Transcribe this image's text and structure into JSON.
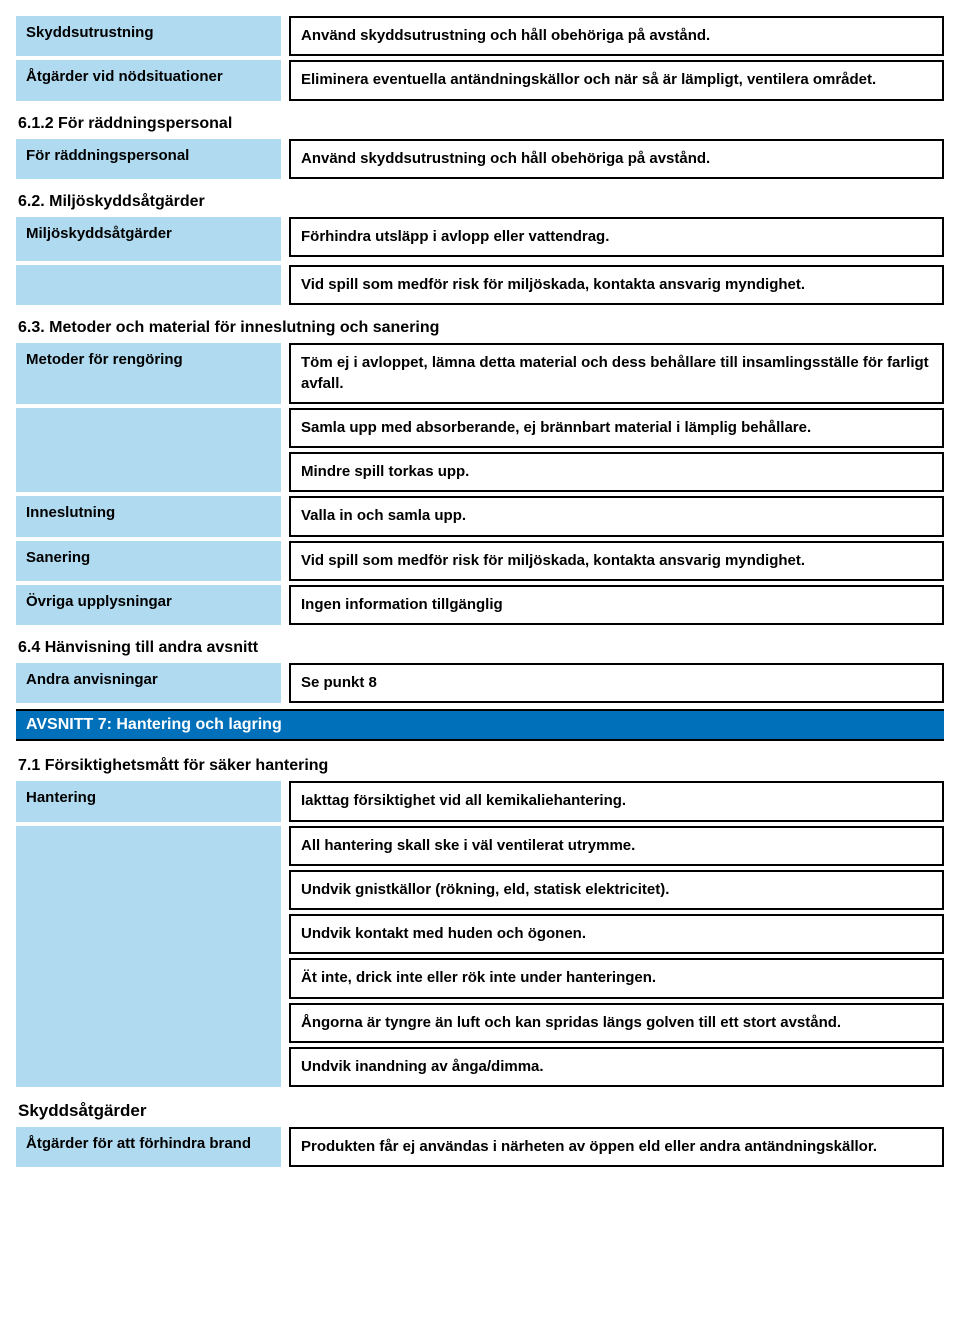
{
  "colors": {
    "label_bg": "#b0daf0",
    "section_bg": "#0070ba",
    "section_text": "#ffffff",
    "border": "#000000",
    "text": "#000000"
  },
  "rows": {
    "skydd": {
      "label": "Skyddsutrustning",
      "v1": "Använd skyddsutrustning och håll obehöriga på avstånd."
    },
    "atgarder_nod": {
      "label": "Åtgärder vid nödsituationer",
      "v1": "Eliminera eventuella antändningskällor och när så är lämpligt, ventilera området."
    },
    "h612": "6.1.2 För räddningspersonal",
    "raddnings": {
      "label": "För räddningspersonal",
      "v1": "Använd skyddsutrustning och håll obehöriga på avstånd."
    },
    "h62": "6.2. Miljöskyddsåtgärder",
    "miljo": {
      "label": "Miljöskyddsåtgärder",
      "v1": "Förhindra utsläpp i avlopp eller vattendrag.",
      "v2": "Vid spill som medför risk för miljöskada, kontakta ansvarig myndighet."
    },
    "h63": "6.3. Metoder och material för inneslutning och sanering",
    "metoder": {
      "label": "Metoder för rengöring",
      "v1": "Töm ej i avloppet, lämna detta material och dess behållare till insamlingsställe för farligt avfall.",
      "v2": "Samla upp med absorberande, ej brännbart material i lämplig behållare.",
      "v3": "Mindre spill torkas upp."
    },
    "inneslutning": {
      "label": "Inneslutning",
      "v1": "Valla in och samla upp."
    },
    "sanering": {
      "label": "Sanering",
      "v1": "Vid spill som medför risk för miljöskada, kontakta ansvarig myndighet."
    },
    "ovriga": {
      "label": "Övriga upplysningar",
      "v1": "Ingen information tillgänglig"
    },
    "h64": "6.4 Hänvisning till andra avsnitt",
    "andra": {
      "label": "Andra anvisningar",
      "v1": "Se punkt 8"
    },
    "section7": "AVSNITT 7: Hantering och lagring",
    "h71": "7.1 Försiktighetsmått för säker hantering",
    "hantering": {
      "label": "Hantering",
      "v1": "Iakttag försiktighet vid all kemikaliehantering.",
      "v2": "All hantering skall ske i väl ventilerat utrymme.",
      "v3": "Undvik gnistkällor (rökning, eld, statisk elektricitet).",
      "v4": "Undvik kontakt med huden och ögonen.",
      "v5": "Ät inte, drick inte eller rök inte under hanteringen.",
      "v6": "Ångorna är tyngre än luft och kan spridas längs golven till ett stort avstånd.",
      "v7": "Undvik inandning av ånga/dimma."
    },
    "skyddsatgarder": "Skyddsåtgärder",
    "brand": {
      "label": "Åtgärder för att förhindra brand",
      "v1": "Produkten får ej användas i närheten av öppen eld eller andra antändningskällor."
    }
  }
}
